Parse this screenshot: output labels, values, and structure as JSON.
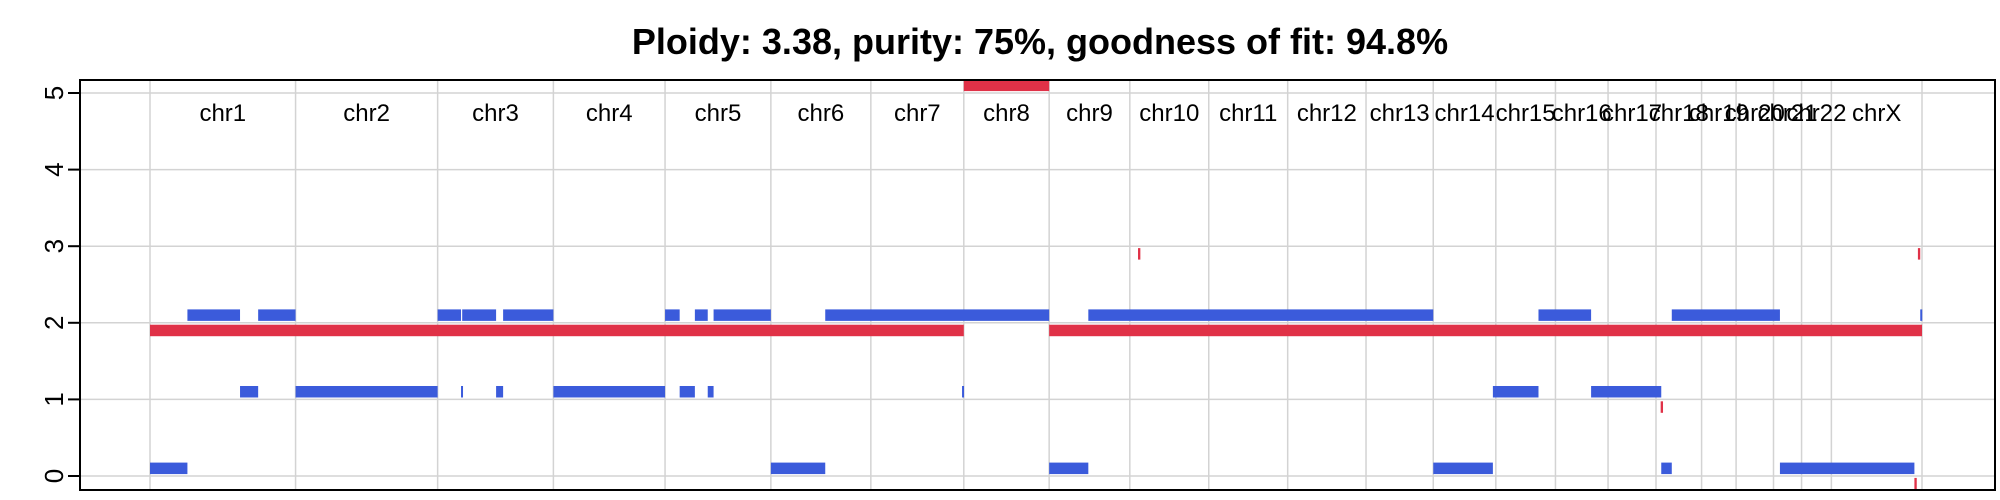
{
  "chart_data": {
    "type": "segment",
    "title": "Ploidy: 3.38, purity: 75%, goodness of fit: 94.8%",
    "ylim": [
      0,
      5
    ],
    "yticks": [
      "0",
      "1",
      "2",
      "3",
      "4",
      "5"
    ],
    "grid": true,
    "chromosomes": [
      {
        "label": "chr1",
        "start": 0,
        "end": 249
      },
      {
        "label": "chr2",
        "start": 249,
        "end": 492
      },
      {
        "label": "chr3",
        "start": 492,
        "end": 690
      },
      {
        "label": "chr4",
        "start": 690,
        "end": 881
      },
      {
        "label": "chr5",
        "start": 881,
        "end": 1062
      },
      {
        "label": "chr6",
        "start": 1062,
        "end": 1233
      },
      {
        "label": "chr7",
        "start": 1233,
        "end": 1392
      },
      {
        "label": "chr8",
        "start": 1392,
        "end": 1538
      },
      {
        "label": "chr9",
        "start": 1538,
        "end": 1676
      },
      {
        "label": "chr10",
        "start": 1676,
        "end": 1811
      },
      {
        "label": "chr11",
        "start": 1811,
        "end": 1946
      },
      {
        "label": "chr12",
        "start": 1946,
        "end": 2080
      },
      {
        "label": "chr13",
        "start": 2080,
        "end": 2195
      },
      {
        "label": "chr14",
        "start": 2195,
        "end": 2302
      },
      {
        "label": "chr15",
        "start": 2302,
        "end": 2404
      },
      {
        "label": "chr16",
        "start": 2404,
        "end": 2494
      },
      {
        "label": "chr17",
        "start": 2494,
        "end": 2576
      },
      {
        "label": "chr18",
        "start": 2576,
        "end": 2654
      },
      {
        "label": "chr19",
        "start": 2654,
        "end": 2713
      },
      {
        "label": "chr20",
        "start": 2713,
        "end": 2777
      },
      {
        "label": "chr21",
        "start": 2777,
        "end": 2825
      },
      {
        "label": "chr22",
        "start": 2825,
        "end": 2876
      },
      {
        "label": "chrX",
        "start": 2876,
        "end": 3031
      }
    ],
    "series": [
      {
        "color": "#e03147",
        "thickness": 0.15,
        "segments": [
          [
            0,
            1392,
            1.9
          ],
          [
            1538,
            3031,
            1.9
          ],
          [
            1392,
            1538,
            5.1
          ],
          [
            1690,
            1694,
            2.9
          ],
          [
            2584,
            2588,
            0.9
          ],
          [
            3018,
            3022,
            -0.1
          ],
          [
            3024,
            3028,
            2.9
          ]
        ]
      },
      {
        "color": "#3b5bdb",
        "thickness": 0.15,
        "segments": [
          [
            0,
            64,
            0.1
          ],
          [
            64,
            154,
            2.1
          ],
          [
            154,
            185,
            1.1
          ],
          [
            185,
            249,
            2.1
          ],
          [
            249,
            492,
            1.1
          ],
          [
            492,
            532,
            2.1
          ],
          [
            532,
            534,
            1.1
          ],
          [
            534,
            592,
            2.1
          ],
          [
            592,
            604,
            1.1
          ],
          [
            604,
            690,
            2.1
          ],
          [
            690,
            881,
            1.1
          ],
          [
            881,
            906,
            2.1
          ],
          [
            906,
            932,
            1.1
          ],
          [
            932,
            954,
            2.1
          ],
          [
            954,
            964,
            1.1
          ],
          [
            964,
            1062,
            2.1
          ],
          [
            1062,
            1155,
            0.1
          ],
          [
            1155,
            1538,
            2.1
          ],
          [
            1389,
            1391,
            1.1
          ],
          [
            1538,
            1605,
            0.1
          ],
          [
            1605,
            2195,
            2.1
          ],
          [
            2195,
            2297,
            0.1
          ],
          [
            2297,
            2375,
            1.1
          ],
          [
            2375,
            2465,
            2.1
          ],
          [
            2465,
            2585,
            1.1
          ],
          [
            2585,
            2603,
            0.1
          ],
          [
            2603,
            2788,
            2.1
          ],
          [
            2788,
            3018,
            0.1
          ],
          [
            3028,
            3031,
            2.1
          ]
        ]
      }
    ]
  }
}
